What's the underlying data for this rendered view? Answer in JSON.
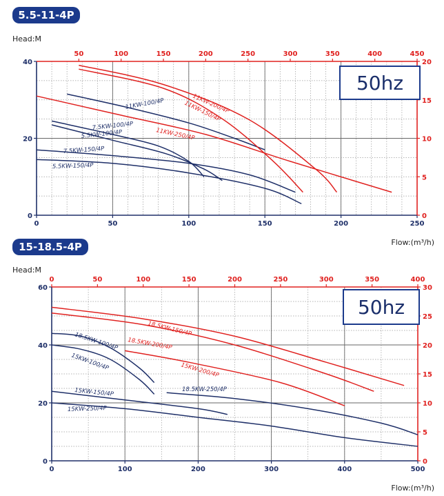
{
  "colors": {
    "blue": "#1e2f68",
    "red": "#e0211f",
    "badge": "#1b3a8c",
    "grid": "#9a9a9a"
  },
  "chart_data": [
    {
      "type": "line",
      "title": "5.5-11-4P",
      "hz_label": "50hz",
      "ylabel": "Head:M",
      "xlabel": "Flow:(m³/h)",
      "grid": true,
      "legend": "none",
      "axes": {
        "x_bottom": {
          "range": [
            0,
            250
          ],
          "ticks": [
            0,
            50,
            100,
            150,
            200,
            250
          ],
          "color": "blue"
        },
        "y_left": {
          "range": [
            0,
            40
          ],
          "ticks": [
            0,
            20,
            40
          ],
          "color": "blue"
        },
        "x_top": {
          "range": [
            0,
            450
          ],
          "ticks": [
            50,
            100,
            150,
            200,
            250,
            300,
            350,
            400,
            450
          ],
          "color": "red"
        },
        "y_right": {
          "range": [
            0,
            20
          ],
          "ticks": [
            0,
            5,
            10,
            15,
            20
          ],
          "color": "red"
        }
      },
      "series": [
        {
          "name": "11KW-100/4P",
          "axis": "blue",
          "x": [
            20,
            60,
            100,
            130,
            150
          ],
          "y": [
            31.5,
            28,
            24,
            20,
            17
          ]
        },
        {
          "name": "7.5KW-100/4P",
          "axis": "blue",
          "x": [
            10,
            50,
            80,
            100,
            110
          ],
          "y": [
            24.5,
            21,
            18,
            14,
            10
          ]
        },
        {
          "name": "5.5KW-100/4P",
          "axis": "blue",
          "x": [
            10,
            50,
            85,
            110,
            122
          ],
          "y": [
            23.5,
            19.5,
            16,
            12,
            9
          ]
        },
        {
          "name": "7.5KW-150/4P",
          "axis": "blue",
          "x": [
            0,
            50,
            100,
            140,
            170
          ],
          "y": [
            17,
            15.5,
            13.5,
            10.5,
            6
          ]
        },
        {
          "name": "5.5KW-150/4P",
          "axis": "blue",
          "x": [
            0,
            50,
            100,
            150,
            174
          ],
          "y": [
            14.5,
            13.5,
            11,
            7,
            3
          ]
        },
        {
          "name": "11KW-200/4P",
          "axis": "red",
          "x": [
            50,
            150,
            250,
            330,
            355
          ],
          "y": [
            19.5,
            17,
            12.5,
            6,
            3
          ]
        },
        {
          "name": "11KW-150/4P",
          "axis": "red",
          "x": [
            50,
            150,
            220,
            280,
            315
          ],
          "y": [
            19,
            16.5,
            12.5,
            7,
            3
          ]
        },
        {
          "name": "11KW-250/4P",
          "axis": "red",
          "x": [
            0,
            100,
            200,
            300,
            420
          ],
          "y": [
            15.5,
            13,
            10.5,
            7,
            3
          ]
        }
      ],
      "curve_labels": [
        "11KW-100/4P",
        "7.5KW-100/4P",
        "5.5KW-100/4P",
        "7.5KW-150/4P",
        "5.5KW-150/4P",
        "11KW-200/4P",
        "11KW-150/4P",
        "11KW-250/4P"
      ]
    },
    {
      "type": "line",
      "title": "15-18.5-4P",
      "hz_label": "50hz",
      "ylabel": "Head:M",
      "xlabel": "Flow:(m³/h)",
      "grid": true,
      "legend": "none",
      "axes": {
        "x_bottom": {
          "range": [
            0,
            500
          ],
          "ticks": [
            0,
            100,
            200,
            300,
            400,
            500
          ],
          "color": "blue"
        },
        "y_left": {
          "range": [
            0,
            60
          ],
          "ticks": [
            0,
            20,
            40,
            60
          ],
          "color": "blue"
        },
        "x_top": {
          "range": [
            0,
            400
          ],
          "ticks": [
            0,
            50,
            100,
            150,
            200,
            250,
            300,
            350,
            400
          ],
          "color": "red"
        },
        "y_right": {
          "range": [
            0,
            30
          ],
          "ticks": [
            0,
            5,
            10,
            15,
            20,
            25,
            30
          ],
          "color": "red"
        }
      },
      "series": [
        {
          "name": "18.5KW-100/4P",
          "axis": "blue",
          "x": [
            0,
            40,
            80,
            120,
            140
          ],
          "y": [
            44,
            43,
            39,
            32,
            27
          ]
        },
        {
          "name": "15KW-100/4P",
          "axis": "blue",
          "x": [
            0,
            40,
            80,
            120,
            140
          ],
          "y": [
            40,
            38.5,
            35,
            28,
            23
          ]
        },
        {
          "name": "15KW-150/4P",
          "axis": "blue",
          "x": [
            0,
            100,
            200,
            240
          ],
          "y": [
            24,
            21,
            18,
            16
          ]
        },
        {
          "name": "15KW-250/4P",
          "axis": "blue",
          "x": [
            0,
            100,
            200,
            300,
            400,
            500
          ],
          "y": [
            20,
            18,
            15,
            12,
            8,
            5
          ]
        },
        {
          "name": "18.5KW-250/4P",
          "axis": "blue",
          "x": [
            157,
            250,
            350,
            450,
            500
          ],
          "y": [
            23.5,
            21.5,
            18,
            13,
            9
          ]
        },
        {
          "name": "18.5KW-150/4P",
          "axis": "red",
          "x": [
            0,
            100,
            200,
            300,
            385
          ],
          "y": [
            26.5,
            24.5,
            21.5,
            17,
            13
          ]
        },
        {
          "name": "18.5KW-200/4P",
          "axis": "red",
          "x": [
            0,
            100,
            200,
            300,
            352
          ],
          "y": [
            25.5,
            23.5,
            20,
            15,
            12
          ]
        },
        {
          "name": "15KW-200/4P",
          "axis": "red",
          "x": [
            80,
            150,
            250,
            320
          ],
          "y": [
            19,
            17,
            13.5,
            9.5
          ]
        }
      ],
      "curve_labels": [
        "18.5KW-150/4P",
        "18.5KW-200/4P",
        "18.5KW-100/4P",
        "15KW-100/4P",
        "15KW-200/4P",
        "15KW-150/4P",
        "18.5KW-250/4P",
        "15KW-250/4P"
      ]
    }
  ]
}
